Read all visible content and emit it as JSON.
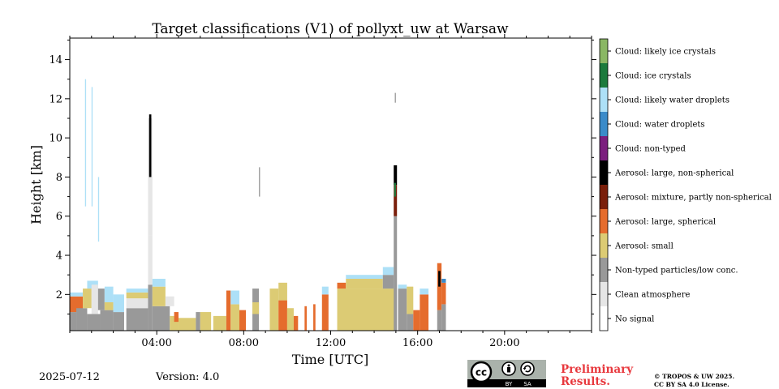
{
  "chart_data": {
    "type": "heatmap",
    "title": "Target classifications (V1) of pollyxt_uw at Warsaw",
    "xlabel": "Time [UTC]",
    "ylabel": "Height [km]",
    "xlim": [
      0,
      24
    ],
    "ylim": [
      0.15,
      15.1
    ],
    "x_ticks": [
      {
        "value": 4,
        "label": "04:00"
      },
      {
        "value": 8,
        "label": "08:00"
      },
      {
        "value": 12,
        "label": "12:00"
      },
      {
        "value": 16,
        "label": "16:00"
      },
      {
        "value": 20,
        "label": "20:00"
      }
    ],
    "y_ticks": [
      {
        "value": 2,
        "label": "2"
      },
      {
        "value": 4,
        "label": "4"
      },
      {
        "value": 6,
        "label": "6"
      },
      {
        "value": 8,
        "label": "8"
      },
      {
        "value": 10,
        "label": "10"
      },
      {
        "value": 12,
        "label": "12"
      },
      {
        "value": 14,
        "label": "14"
      }
    ],
    "classes": [
      {
        "id": 0,
        "label": "No signal",
        "color": "#ffffff"
      },
      {
        "id": 1,
        "label": "Clean atmosphere",
        "color": "#e6e6e6"
      },
      {
        "id": 2,
        "label": "Non-typed particles/low conc.",
        "color": "#999999"
      },
      {
        "id": 3,
        "label": "Aerosol: small",
        "color": "#dccb74"
      },
      {
        "id": 4,
        "label": "Aerosol: large, spherical",
        "color": "#e56c2d"
      },
      {
        "id": 5,
        "label": "Aerosol: mixture, partly non-spherical",
        "color": "#7a1f0b"
      },
      {
        "id": 6,
        "label": "Aerosol: large, non-spherical",
        "color": "#000000"
      },
      {
        "id": 7,
        "label": "Cloud: non-typed",
        "color": "#7b1e7e"
      },
      {
        "id": 8,
        "label": "Cloud: water droplets",
        "color": "#3b8bc9"
      },
      {
        "id": 9,
        "label": "Cloud: likely water droplets",
        "color": "#ade0f7"
      },
      {
        "id": 10,
        "label": "Cloud: ice crystals",
        "color": "#1b7a3c"
      },
      {
        "id": 11,
        "label": "Cloud: likely ice crystals",
        "color": "#8ab764"
      }
    ],
    "blocks": [
      {
        "x0": 0.0,
        "x1": 0.3,
        "y0": 0.15,
        "y1": 1.1,
        "cls": 2
      },
      {
        "x0": 0.0,
        "x1": 0.6,
        "y0": 1.1,
        "y1": 1.9,
        "cls": 4
      },
      {
        "x0": 0.0,
        "x1": 0.6,
        "y0": 1.9,
        "y1": 2.1,
        "cls": 9
      },
      {
        "x0": 0.3,
        "x1": 0.8,
        "y0": 0.15,
        "y1": 1.3,
        "cls": 2
      },
      {
        "x0": 0.6,
        "x1": 1.0,
        "y0": 1.3,
        "y1": 2.3,
        "cls": 3
      },
      {
        "x0": 0.8,
        "x1": 1.4,
        "y0": 0.15,
        "y1": 1.0,
        "cls": 2
      },
      {
        "x0": 0.8,
        "x1": 1.3,
        "y0": 2.3,
        "y1": 2.7,
        "cls": 9
      },
      {
        "x0": 1.0,
        "x1": 1.3,
        "y0": 1.0,
        "y1": 2.5,
        "cls": 1
      },
      {
        "x0": 1.4,
        "x1": 2.0,
        "y0": 0.15,
        "y1": 1.2,
        "cls": 2
      },
      {
        "x0": 1.3,
        "x1": 1.6,
        "y0": 1.2,
        "y1": 2.3,
        "cls": 2
      },
      {
        "x0": 1.6,
        "x1": 2.0,
        "y0": 1.2,
        "y1": 1.6,
        "cls": 3
      },
      {
        "x0": 1.6,
        "x1": 2.0,
        "y0": 1.6,
        "y1": 2.4,
        "cls": 9
      },
      {
        "x0": 2.0,
        "x1": 2.5,
        "y0": 0.15,
        "y1": 1.1,
        "cls": 2
      },
      {
        "x0": 2.0,
        "x1": 2.5,
        "y0": 1.1,
        "y1": 2.0,
        "cls": 9
      },
      {
        "x0": 2.6,
        "x1": 3.6,
        "y0": 0.15,
        "y1": 1.3,
        "cls": 2
      },
      {
        "x0": 2.6,
        "x1": 3.6,
        "y0": 1.3,
        "y1": 1.8,
        "cls": 1
      },
      {
        "x0": 2.6,
        "x1": 3.6,
        "y0": 1.8,
        "y1": 2.1,
        "cls": 3
      },
      {
        "x0": 2.6,
        "x1": 3.6,
        "y0": 2.1,
        "y1": 2.3,
        "cls": 9
      },
      {
        "x0": 3.6,
        "x1": 3.8,
        "y0": 0.15,
        "y1": 2.5,
        "cls": 2
      },
      {
        "x0": 3.6,
        "x1": 3.8,
        "y0": 2.5,
        "y1": 5.0,
        "cls": 1
      },
      {
        "x0": 3.6,
        "x1": 3.8,
        "y0": 5.0,
        "y1": 11.0,
        "cls": 1
      },
      {
        "x0": 3.8,
        "x1": 4.6,
        "y0": 0.15,
        "y1": 1.4,
        "cls": 2
      },
      {
        "x0": 3.8,
        "x1": 4.4,
        "y0": 1.4,
        "y1": 2.4,
        "cls": 3
      },
      {
        "x0": 3.8,
        "x1": 4.4,
        "y0": 2.4,
        "y1": 2.8,
        "cls": 9
      },
      {
        "x0": 4.4,
        "x1": 4.8,
        "y0": 1.4,
        "y1": 1.9,
        "cls": 1
      },
      {
        "x0": 4.6,
        "x1": 5.0,
        "y0": 0.15,
        "y1": 0.9,
        "cls": 3
      },
      {
        "x0": 4.8,
        "x1": 5.0,
        "y0": 0.6,
        "y1": 1.1,
        "cls": 4
      },
      {
        "x0": 5.0,
        "x1": 5.8,
        "y0": 0.15,
        "y1": 0.8,
        "cls": 3
      },
      {
        "x0": 5.8,
        "x1": 6.0,
        "y0": 0.15,
        "y1": 1.1,
        "cls": 2
      },
      {
        "x0": 6.0,
        "x1": 6.5,
        "y0": 0.15,
        "y1": 1.1,
        "cls": 3
      },
      {
        "x0": 6.6,
        "x1": 7.2,
        "y0": 0.15,
        "y1": 0.9,
        "cls": 3
      },
      {
        "x0": 7.2,
        "x1": 7.4,
        "y0": 0.15,
        "y1": 2.2,
        "cls": 4
      },
      {
        "x0": 7.4,
        "x1": 7.8,
        "y0": 0.15,
        "y1": 1.5,
        "cls": 3
      },
      {
        "x0": 7.4,
        "x1": 7.8,
        "y0": 1.5,
        "y1": 2.2,
        "cls": 9
      },
      {
        "x0": 7.8,
        "x1": 8.1,
        "y0": 0.15,
        "y1": 1.2,
        "cls": 4
      },
      {
        "x0": 8.4,
        "x1": 8.7,
        "y0": 0.15,
        "y1": 2.3,
        "cls": 2
      },
      {
        "x0": 8.4,
        "x1": 8.7,
        "y0": 1.0,
        "y1": 1.6,
        "cls": 3
      },
      {
        "x0": 9.2,
        "x1": 9.6,
        "y0": 0.15,
        "y1": 2.3,
        "cls": 3
      },
      {
        "x0": 9.6,
        "x1": 10.0,
        "y0": 0.15,
        "y1": 1.7,
        "cls": 4
      },
      {
        "x0": 9.6,
        "x1": 10.0,
        "y0": 1.7,
        "y1": 2.6,
        "cls": 3
      },
      {
        "x0": 10.0,
        "x1": 10.3,
        "y0": 0.15,
        "y1": 1.3,
        "cls": 3
      },
      {
        "x0": 10.3,
        "x1": 10.5,
        "y0": 0.15,
        "y1": 0.9,
        "cls": 4
      },
      {
        "x0": 10.8,
        "x1": 10.9,
        "y0": 0.15,
        "y1": 1.4,
        "cls": 4
      },
      {
        "x0": 11.2,
        "x1": 11.3,
        "y0": 0.15,
        "y1": 1.5,
        "cls": 4
      },
      {
        "x0": 11.6,
        "x1": 11.9,
        "y0": 0.15,
        "y1": 2.0,
        "cls": 4
      },
      {
        "x0": 11.6,
        "x1": 11.9,
        "y0": 2.0,
        "y1": 2.4,
        "cls": 9
      },
      {
        "x0": 12.3,
        "x1": 15.0,
        "y0": 0.15,
        "y1": 2.3,
        "cls": 3
      },
      {
        "x0": 12.3,
        "x1": 12.7,
        "y0": 2.3,
        "y1": 2.6,
        "cls": 4
      },
      {
        "x0": 12.7,
        "x1": 14.4,
        "y0": 2.3,
        "y1": 2.8,
        "cls": 3
      },
      {
        "x0": 12.7,
        "x1": 14.4,
        "y0": 2.8,
        "y1": 3.0,
        "cls": 9
      },
      {
        "x0": 14.4,
        "x1": 14.9,
        "y0": 2.3,
        "y1": 3.0,
        "cls": 2
      },
      {
        "x0": 14.4,
        "x1": 14.9,
        "y0": 3.0,
        "y1": 3.4,
        "cls": 9
      },
      {
        "x0": 14.9,
        "x1": 15.05,
        "y0": 0.15,
        "y1": 6.0,
        "cls": 2
      },
      {
        "x0": 14.9,
        "x1": 15.05,
        "y0": 6.0,
        "y1": 7.6,
        "cls": 5
      },
      {
        "x0": 14.9,
        "x1": 15.05,
        "y0": 7.6,
        "y1": 8.6,
        "cls": 6
      },
      {
        "x0": 14.92,
        "x1": 15.0,
        "y0": 7.0,
        "y1": 7.7,
        "cls": 10
      },
      {
        "x0": 15.1,
        "x1": 15.5,
        "y0": 0.15,
        "y1": 2.3,
        "cls": 2
      },
      {
        "x0": 15.1,
        "x1": 15.5,
        "y0": 2.3,
        "y1": 2.5,
        "cls": 9
      },
      {
        "x0": 15.5,
        "x1": 15.8,
        "y0": 0.15,
        "y1": 1.0,
        "cls": 2
      },
      {
        "x0": 15.5,
        "x1": 15.8,
        "y0": 1.0,
        "y1": 2.4,
        "cls": 3
      },
      {
        "x0": 15.8,
        "x1": 16.1,
        "y0": 0.15,
        "y1": 1.2,
        "cls": 4
      },
      {
        "x0": 16.1,
        "x1": 16.5,
        "y0": 0.15,
        "y1": 2.0,
        "cls": 4
      },
      {
        "x0": 16.1,
        "x1": 16.5,
        "y0": 2.0,
        "y1": 2.3,
        "cls": 9
      },
      {
        "x0": 16.9,
        "x1": 17.1,
        "y0": 0.15,
        "y1": 1.2,
        "cls": 2
      },
      {
        "x0": 16.9,
        "x1": 17.1,
        "y0": 1.2,
        "y1": 3.6,
        "cls": 4
      },
      {
        "x0": 16.95,
        "x1": 17.05,
        "y0": 2.4,
        "y1": 3.2,
        "cls": 6
      },
      {
        "x0": 17.1,
        "x1": 17.3,
        "y0": 0.15,
        "y1": 1.5,
        "cls": 2
      },
      {
        "x0": 17.1,
        "x1": 17.3,
        "y0": 1.5,
        "y1": 2.6,
        "cls": 4
      },
      {
        "x0": 17.1,
        "x1": 17.3,
        "y0": 2.6,
        "y1": 2.8,
        "cls": 8
      },
      {
        "x0": 0.7,
        "x1": 0.75,
        "y0": 6.5,
        "y1": 13.0,
        "cls": 9
      },
      {
        "x0": 1.0,
        "x1": 1.05,
        "y0": 6.5,
        "y1": 12.6,
        "cls": 9
      },
      {
        "x0": 1.3,
        "x1": 1.35,
        "y0": 4.7,
        "y1": 8.0,
        "cls": 9
      },
      {
        "x0": 3.65,
        "x1": 3.75,
        "y0": 8.0,
        "y1": 11.2,
        "cls": 6
      },
      {
        "x0": 8.7,
        "x1": 8.75,
        "y0": 7.0,
        "y1": 8.5,
        "cls": 2
      },
      {
        "x0": 14.95,
        "x1": 15.0,
        "y0": 11.8,
        "y1": 12.3,
        "cls": 2
      }
    ]
  },
  "footer": {
    "date": "2025-07-12",
    "version": "Version: 4.0",
    "preliminary": [
      "Preliminary",
      "Results."
    ],
    "license": [
      "© TROPOS & UW 2025.",
      "CC BY SA 4.0 License."
    ],
    "badge": {
      "cc": "cc",
      "by": "BY",
      "sa": "SA"
    }
  }
}
